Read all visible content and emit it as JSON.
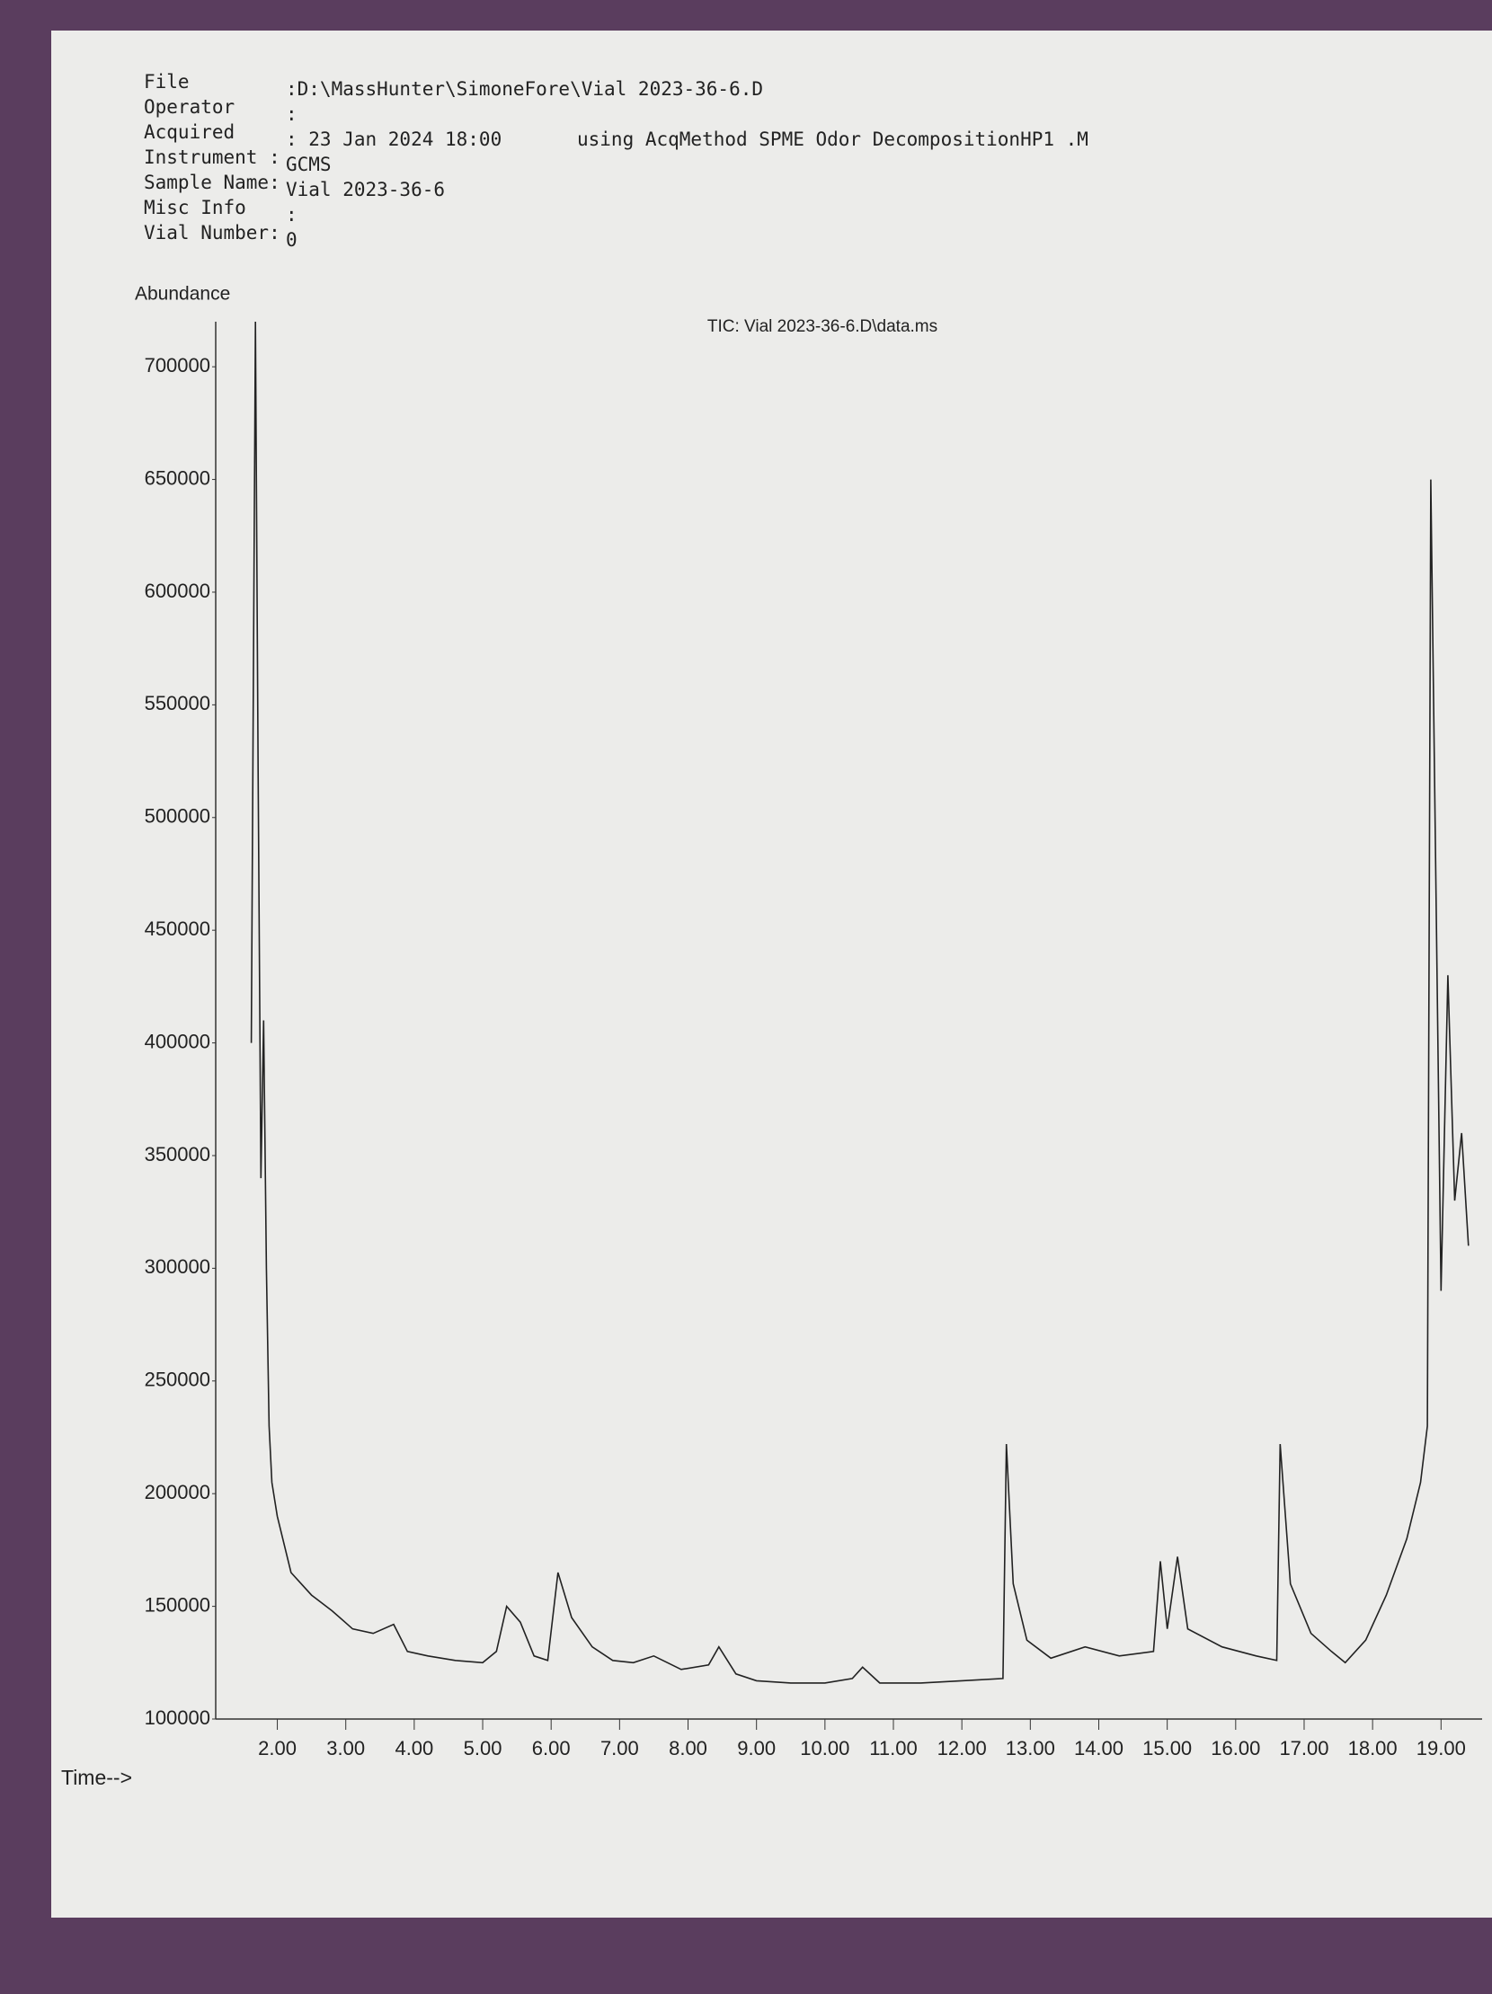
{
  "header": {
    "lines": [
      {
        "label": "File",
        "value": ":D:\\MassHunter\\SimoneFore\\Vial 2023-36-6.D"
      },
      {
        "label": "Operator",
        "value": ":"
      },
      {
        "label": "Acquired",
        "value": ": 23 Jan 2024  18:00",
        "extra": "using AcqMethod SPME Odor DecompositionHP1 .M"
      },
      {
        "label": "Instrument :",
        "value": "GCMS"
      },
      {
        "label": "Sample Name:",
        "value": "Vial 2023-36-6"
      },
      {
        "label": "Misc Info",
        "value": ":"
      },
      {
        "label": "Vial Number:",
        "value": "0"
      }
    ]
  },
  "chart_data": {
    "type": "line",
    "title": "TIC: Vial 2023-36-6.D\\data.ms",
    "y_label": "Abundance",
    "x_label": "Time-->",
    "color": "#222222",
    "x": [
      1.62,
      1.68,
      1.72,
      1.76,
      1.8,
      1.84,
      1.88,
      1.92,
      2.0,
      2.2,
      2.5,
      2.8,
      3.1,
      3.4,
      3.7,
      3.9,
      4.2,
      4.6,
      5.0,
      5.2,
      5.35,
      5.55,
      5.75,
      5.95,
      6.1,
      6.3,
      6.6,
      6.9,
      7.2,
      7.5,
      7.9,
      8.3,
      8.45,
      8.7,
      9.0,
      9.5,
      10.0,
      10.4,
      10.55,
      10.8,
      11.4,
      12.0,
      12.6,
      12.65,
      12.75,
      12.95,
      13.3,
      13.8,
      14.3,
      14.8,
      14.9,
      15.0,
      15.15,
      15.3,
      15.8,
      16.3,
      16.6,
      16.65,
      16.8,
      17.1,
      17.4,
      17.6,
      17.9,
      18.2,
      18.5,
      18.7,
      18.8,
      18.85,
      19.0,
      19.1,
      19.2,
      19.3,
      19.4
    ],
    "values": [
      400000,
      720000,
      520000,
      340000,
      410000,
      300000,
      230000,
      205000,
      190000,
      165000,
      155000,
      148000,
      140000,
      138000,
      142000,
      130000,
      128000,
      126000,
      125000,
      130000,
      150000,
      143000,
      128000,
      126000,
      165000,
      145000,
      132000,
      126000,
      125000,
      128000,
      122000,
      124000,
      132000,
      120000,
      117000,
      116000,
      116000,
      118000,
      123000,
      116000,
      116000,
      117000,
      118000,
      222000,
      160000,
      135000,
      127000,
      132000,
      128000,
      130000,
      170000,
      140000,
      172000,
      140000,
      132000,
      128000,
      126000,
      222000,
      160000,
      138000,
      130000,
      125000,
      135000,
      155000,
      180000,
      205000,
      230000,
      650000,
      290000,
      430000,
      330000,
      360000,
      310000
    ],
    "xlim": [
      1.1,
      19.6
    ],
    "ylim": [
      100000,
      720000
    ],
    "xticks": [
      {
        "value": 2,
        "label": "2.00"
      },
      {
        "value": 3,
        "label": "3.00"
      },
      {
        "value": 4,
        "label": "4.00"
      },
      {
        "value": 5,
        "label": "5.00"
      },
      {
        "value": 6,
        "label": "6.00"
      },
      {
        "value": 7,
        "label": "7.00"
      },
      {
        "value": 8,
        "label": "8.00"
      },
      {
        "value": 9,
        "label": "9.00"
      },
      {
        "value": 10,
        "label": "10.00"
      },
      {
        "value": 11,
        "label": "11.00"
      },
      {
        "value": 12,
        "label": "12.00"
      },
      {
        "value": 13,
        "label": "13.00"
      },
      {
        "value": 14,
        "label": "14.00"
      },
      {
        "value": 15,
        "label": "15.00"
      },
      {
        "value": 16,
        "label": "16.00"
      },
      {
        "value": 17,
        "label": "17.00"
      },
      {
        "value": 18,
        "label": "18.00"
      },
      {
        "value": 19,
        "label": "19.00"
      }
    ],
    "yticks": [
      100000,
      150000,
      200000,
      250000,
      300000,
      350000,
      400000,
      450000,
      500000,
      550000,
      600000,
      650000,
      700000
    ],
    "grid": false
  }
}
